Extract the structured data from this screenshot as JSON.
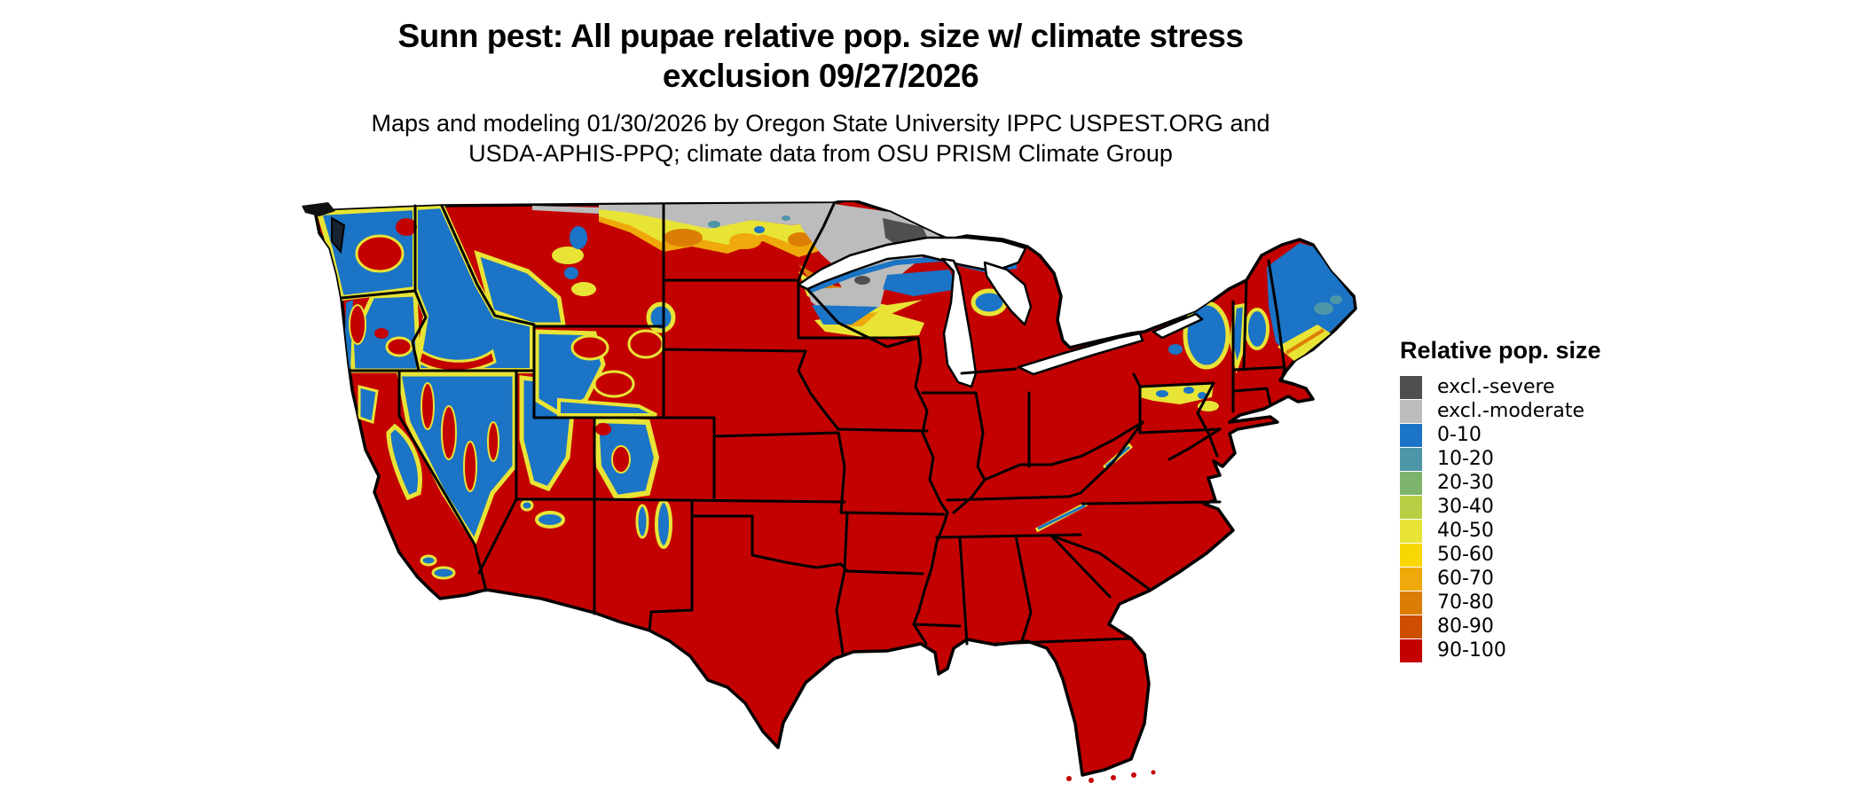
{
  "title": {
    "line1": "Sunn pest: All pupae relative pop. size w/ climate stress",
    "line2": "exclusion 09/27/2026"
  },
  "subtitle": {
    "line1": "Maps and modeling 01/30/2026 by Oregon State University IPPC USPEST.ORG and",
    "line2": "USDA-APHIS-PPQ; climate data from OSU PRISM Climate Group"
  },
  "legend": {
    "title": "Relative pop. size",
    "items": [
      {
        "label": "excl.-severe",
        "color": "#4f4f4f"
      },
      {
        "label": "excl.-moderate",
        "color": "#bcbcbc"
      },
      {
        "label": "0-10",
        "color": "#1b74c5"
      },
      {
        "label": "10-20",
        "color": "#4f95a8"
      },
      {
        "label": "20-30",
        "color": "#7db46c"
      },
      {
        "label": "30-40",
        "color": "#b8cf45"
      },
      {
        "label": "40-50",
        "color": "#e8e436"
      },
      {
        "label": "50-60",
        "color": "#f8d703"
      },
      {
        "label": "60-70",
        "color": "#efa90b"
      },
      {
        "label": "70-80",
        "color": "#dc7e05"
      },
      {
        "label": "80-90",
        "color": "#cd4d02"
      },
      {
        "label": "90-100",
        "color": "#c30101"
      }
    ]
  },
  "map": {
    "palette": {
      "excl_severe": "#4f4f4f",
      "excl_moderate": "#bcbcbc",
      "r0_10": "#1b74c5",
      "r10_20": "#4f95a8",
      "r20_30": "#7db46c",
      "r30_40": "#b8cf45",
      "r40_50": "#e8e436",
      "r50_60": "#f8d703",
      "r60_70": "#efa90b",
      "r70_80": "#dc7e05",
      "r80_90": "#cd4d02",
      "r90_100": "#c30101",
      "water": "#ffffff",
      "border": "#000000",
      "sound": "#16222e"
    },
    "regions_depicted": [
      {
        "area": "Most of CONUS (South, Plains, Midwest, East)",
        "class": "90-100"
      },
      {
        "area": "Intermountain West / Cascades / Sierra / Rockies",
        "class": "0-10 with 30-70 fringes"
      },
      {
        "area": "Northern MT, ND border strip, northern MN/WI/MI",
        "class": "excl.-moderate"
      },
      {
        "area": "Northeastern Minnesota",
        "class": "excl.-severe"
      },
      {
        "area": "Adirondacks, northern New England, Maine",
        "class": "0-20 with 40-80 fringe"
      },
      {
        "area": "Appalachian crests (WV, TN/NC)",
        "class": "0-10 streaks"
      }
    ]
  }
}
